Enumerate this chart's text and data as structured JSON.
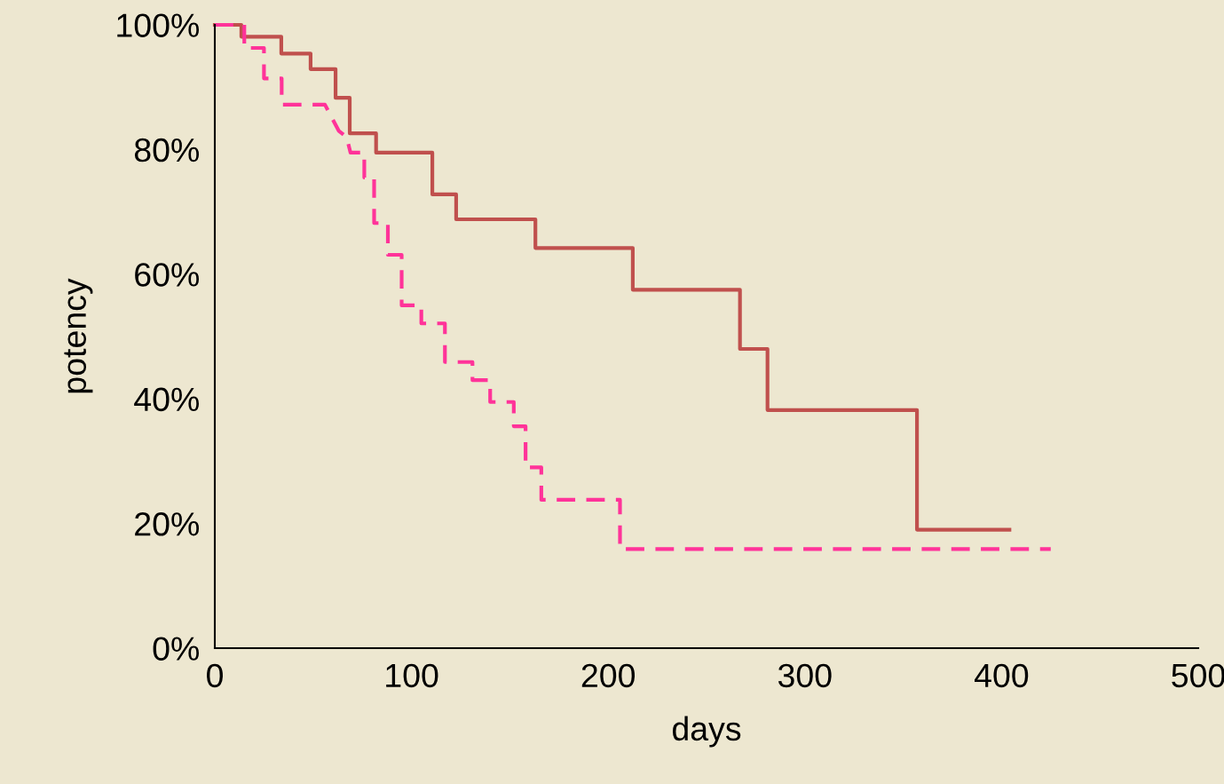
{
  "chart_data": {
    "type": "step",
    "xlabel": "days",
    "ylabel": "potency",
    "xlim": [
      0,
      500
    ],
    "xticks": [
      0,
      100,
      200,
      300,
      400,
      500
    ],
    "ylim": [
      0,
      100
    ],
    "yticks": [
      {
        "value": 0,
        "label": "0%"
      },
      {
        "value": 20,
        "label": "20%"
      },
      {
        "value": 40,
        "label": "40%"
      },
      {
        "value": 60,
        "label": "60%"
      },
      {
        "value": 80,
        "label": "80%"
      },
      {
        "value": 100,
        "label": "100%"
      }
    ],
    "grid": false,
    "legend": false,
    "series": [
      {
        "color": "#c0504d",
        "line_style": "solid",
        "x": [
          0,
          13.5,
          33.8,
          48.7,
          61.4,
          68.6,
          82,
          110.6,
          122.7,
          163,
          212.5,
          267,
          281,
          357,
          404
        ],
        "values": [
          100,
          98.1,
          95.4,
          92.9,
          88.3,
          82.6,
          79.5,
          72.8,
          68.8,
          64.2,
          57.5,
          48,
          38.2,
          19,
          19
        ]
      },
      {
        "type": "line",
        "color": "#ff3399",
        "line_style": "dashed",
        "x": [
          0,
          15,
          15,
          25,
          25,
          34,
          34,
          56,
          63,
          67,
          69,
          76,
          76,
          81,
          81,
          88,
          88,
          95,
          95,
          105,
          105,
          117,
          117,
          131,
          131,
          140,
          140,
          152,
          152,
          158,
          158,
          166,
          166,
          206,
          206,
          425
        ],
        "values": [
          100,
          100,
          96.3,
          96.3,
          91.4,
          91.4,
          87.2,
          87.2,
          83,
          82,
          79.5,
          79.5,
          75.5,
          75.5,
          68.2,
          68.2,
          63.1,
          63.1,
          55,
          55,
          52.1,
          52.1,
          45.9,
          45.9,
          43,
          43,
          39.5,
          39.5,
          35.6,
          35.6,
          29,
          29,
          23.8,
          23.8,
          15.9,
          15.9
        ]
      }
    ]
  }
}
